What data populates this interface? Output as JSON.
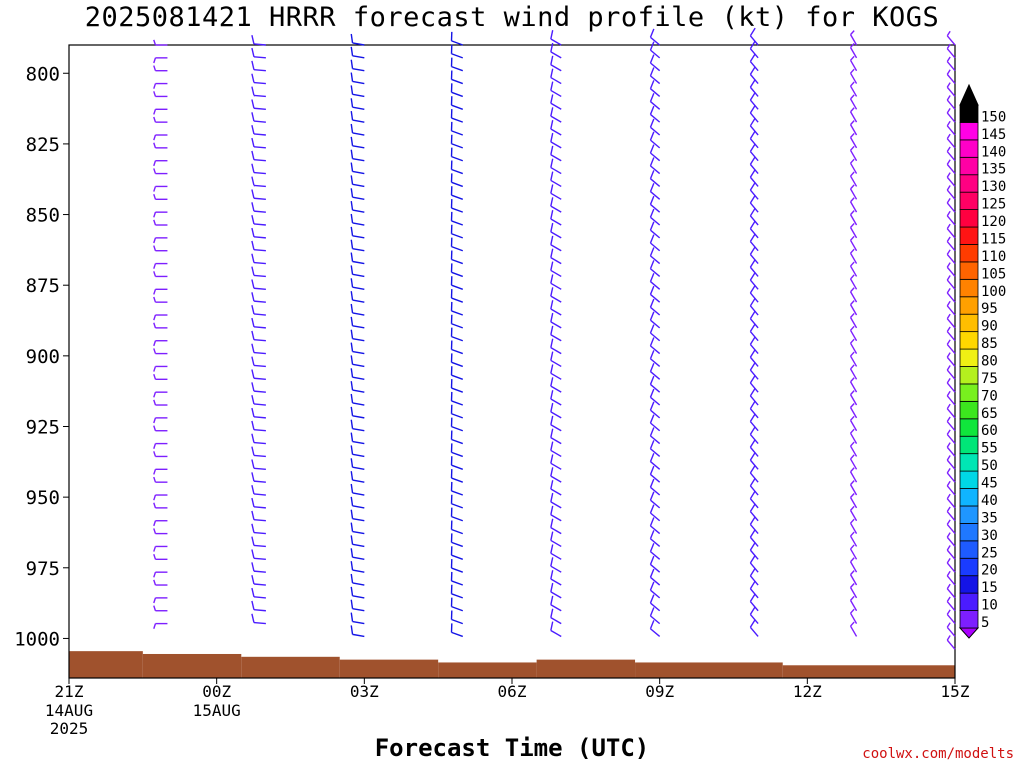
{
  "title": "2025081421 HRRR forecast wind profile (kt) for KOGS",
  "xlabel": "Forecast Time (UTC)",
  "credit": "coolwx.com/modelts",
  "colors": {
    "terrain": "#a0522d",
    "barb_default": "#7b2ff7",
    "barb_strong": "#1a3cff"
  },
  "chart_data": {
    "type": "wind-barb-profile",
    "title": "2025081421 HRRR forecast wind profile (kt) for KOGS",
    "xlabel": "Forecast Time (UTC)",
    "ylabel": "",
    "y_axis": {
      "range": [
        790,
        1014
      ],
      "ticks": [
        800,
        825,
        850,
        875,
        900,
        925,
        950,
        975,
        1000
      ],
      "inverted": true
    },
    "x_axis": {
      "range": [
        0,
        18
      ],
      "ticks": [
        {
          "label": "21Z",
          "sub": [
            "14AUG",
            "2025"
          ]
        },
        {
          "label": "00Z",
          "sub": [
            "15AUG"
          ]
        },
        {
          "label": "03Z",
          "sub": []
        },
        {
          "label": "06Z",
          "sub": []
        },
        {
          "label": "09Z",
          "sub": []
        },
        {
          "label": "12Z",
          "sub": []
        },
        {
          "label": "15Z",
          "sub": []
        }
      ]
    },
    "colorbar": {
      "values": [
        5,
        10,
        15,
        20,
        25,
        30,
        35,
        40,
        45,
        50,
        55,
        60,
        65,
        70,
        75,
        80,
        85,
        90,
        95,
        100,
        105,
        110,
        115,
        120,
        125,
        130,
        135,
        140,
        145,
        150
      ],
      "colors": [
        "#7d1fff",
        "#4b1cff",
        "#1414e6",
        "#1a3cff",
        "#1e5bff",
        "#1f78ff",
        "#1f96ff",
        "#10b4ff",
        "#00d7e6",
        "#00e6b4",
        "#00e678",
        "#10e63c",
        "#3ce61e",
        "#78f01e",
        "#b4f01e",
        "#f0f014",
        "#ffd700",
        "#ffbe00",
        "#ffa000",
        "#ff8200",
        "#ff6400",
        "#ff3c00",
        "#ff1414",
        "#ff0040",
        "#ff0064",
        "#ff0082",
        "#ff00a5",
        "#ff00c8",
        "#ff00e6",
        "#000000"
      ],
      "arrow_top": "#000000",
      "arrow_bottom": "#aa00ff"
    },
    "terrain_pressure": [
      {
        "x0": 0.0,
        "x1": 1.5,
        "p": 1004.5
      },
      {
        "x0": 1.5,
        "x1": 3.5,
        "p": 1005.5
      },
      {
        "x0": 3.5,
        "x1": 5.5,
        "p": 1006.5
      },
      {
        "x0": 5.5,
        "x1": 7.5,
        "p": 1007.5
      },
      {
        "x0": 7.5,
        "x1": 9.5,
        "p": 1008.5
      },
      {
        "x0": 9.5,
        "x1": 11.5,
        "p": 1007.5
      },
      {
        "x0": 11.5,
        "x1": 14.5,
        "p": 1008.5
      },
      {
        "x0": 14.5,
        "x1": 18.0,
        "p": 1009.5
      }
    ],
    "series": [
      {
        "x": 2,
        "p_bottom": 997,
        "dir": 270,
        "speed": 5,
        "flip_every": true
      },
      {
        "x": 4,
        "p_bottom": 997,
        "dir": 275,
        "speed": 10
      },
      {
        "x": 6,
        "p_bottom": 1000,
        "dir": 280,
        "speed": 15
      },
      {
        "x": 8,
        "p_bottom": 1000,
        "dir": 290,
        "speed": 15
      },
      {
        "x": 10,
        "p_bottom": 1000,
        "dir": 300,
        "speed": 10
      },
      {
        "x": 12,
        "p_bottom": 1000,
        "dir": 310,
        "speed": 10
      },
      {
        "x": 14,
        "p_bottom": 1000,
        "dir": 320,
        "speed": 10
      },
      {
        "x": 16,
        "p_bottom": 1000,
        "dir": 330,
        "speed": 5
      },
      {
        "x": 18,
        "p_bottom": 1004,
        "dir": 320,
        "speed": 5
      }
    ]
  }
}
